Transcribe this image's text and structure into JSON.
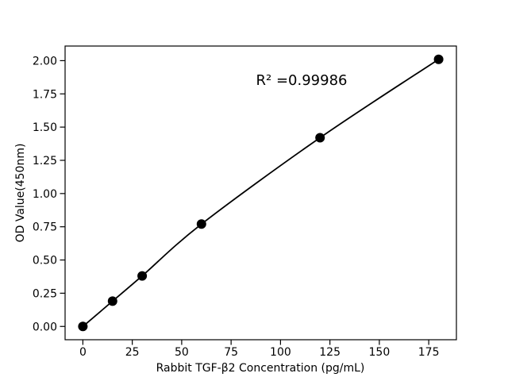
{
  "chart_data": {
    "type": "scatter",
    "title": "",
    "xlabel": "Rabbit TGF-β2 Concentration (pg/mL)",
    "ylabel": "OD Value(450nm)",
    "annotation": "R² =0.99986",
    "x": [
      0,
      15,
      30,
      60,
      120,
      180
    ],
    "y": [
      0.0,
      0.19,
      0.38,
      0.77,
      1.42,
      2.01
    ],
    "fit_line": "smooth curve through all points",
    "xlim": [
      -9,
      189
    ],
    "ylim": [
      -0.1,
      2.11
    ],
    "xtick_values": [
      0,
      25,
      50,
      75,
      100,
      125,
      150,
      175
    ],
    "xtick_labels": [
      "0",
      "25",
      "50",
      "75",
      "100",
      "125",
      "150",
      "175"
    ],
    "ytick_values": [
      0.0,
      0.25,
      0.5,
      0.75,
      1.0,
      1.25,
      1.5,
      1.75,
      2.0
    ],
    "ytick_labels": [
      "0.00",
      "0.25",
      "0.50",
      "0.75",
      "1.00",
      "1.25",
      "1.50",
      "1.75",
      "2.00"
    ],
    "grid": false,
    "legend": null,
    "marker": "filled-circle",
    "marker_color": "#000000",
    "line_color": "#000000",
    "axis_color": "#000000",
    "background_color": "#ffffff"
  }
}
